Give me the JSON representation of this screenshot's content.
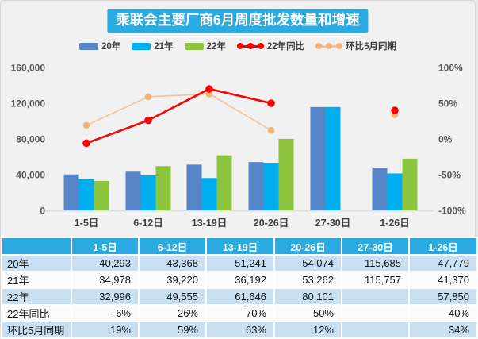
{
  "title": "乘联会主要厂商6月周度批发数量和增速",
  "colors": {
    "title_bg": "#29ABE2",
    "table_header_bg": "#29ABE2",
    "table_stripe": "#C9E0F3",
    "page_bg": "#F1F1F2",
    "axis_text": "#595959",
    "baseline": "#DCDCDC"
  },
  "chart_data": {
    "type": "bar",
    "subtype": "grouped-bars-with-lines",
    "title": "乘联会主要厂商6月周度批发数量和增速",
    "categories": [
      "1-5日",
      "6-12日",
      "13-19日",
      "20-26日",
      "27-30日",
      "1-26日"
    ],
    "bar_series": [
      {
        "key": "y20",
        "name": "20年",
        "color": "#5585C6",
        "values": [
          40293,
          43368,
          51241,
          54074,
          115685,
          47779
        ]
      },
      {
        "key": "y21",
        "name": "21年",
        "color": "#00AEEF",
        "values": [
          34978,
          39220,
          36192,
          53262,
          115757,
          41370
        ]
      },
      {
        "key": "y22",
        "name": "22年",
        "color": "#8CC43E",
        "values": [
          32996,
          49555,
          61646,
          80101,
          null,
          57850
        ]
      }
    ],
    "line_series": [
      {
        "key": "yoy",
        "name": "22年同比",
        "color": "#FE0000",
        "marker_color": "#FE0000",
        "axis": "right",
        "values_pct": [
          -6,
          26,
          70,
          50,
          null,
          40
        ]
      },
      {
        "key": "mom",
        "name": "环比5月同期",
        "color": "#F6C49B",
        "marker_color": "#F2B279",
        "axis": "right",
        "values_pct": [
          19,
          59,
          63,
          12,
          null,
          34
        ]
      }
    ],
    "left_axis": {
      "min": 0,
      "max": 160000,
      "tick_labels": [
        "160,000",
        "120,000",
        "80,000",
        "40,000",
        "0"
      ]
    },
    "right_axis": {
      "min": -100,
      "max": 100,
      "tick_labels": [
        "100%",
        "50%",
        "0%",
        "-50%",
        "-100%"
      ]
    },
    "legend_position": "top",
    "grid": false
  },
  "table": {
    "header": [
      "",
      "1-5日",
      "6-12日",
      "13-19日",
      "20-26日",
      "27-30日",
      "1-26日"
    ],
    "rows": [
      {
        "label": "20年",
        "values": [
          "40,293",
          "43,368",
          "51,241",
          "54,074",
          "115,685",
          "47,779"
        ]
      },
      {
        "label": "21年",
        "values": [
          "34,978",
          "39,220",
          "36,192",
          "53,262",
          "115,757",
          "41,370"
        ]
      },
      {
        "label": "22年",
        "values": [
          "32,996",
          "49,555",
          "61,646",
          "80,101",
          "",
          "57,850"
        ]
      },
      {
        "label": "22年同比",
        "values": [
          "-6%",
          "26%",
          "70%",
          "50%",
          "",
          "40%"
        ]
      },
      {
        "label": "环比5月同期",
        "values": [
          "19%",
          "59%",
          "63%",
          "12%",
          "",
          "34%"
        ]
      }
    ]
  }
}
